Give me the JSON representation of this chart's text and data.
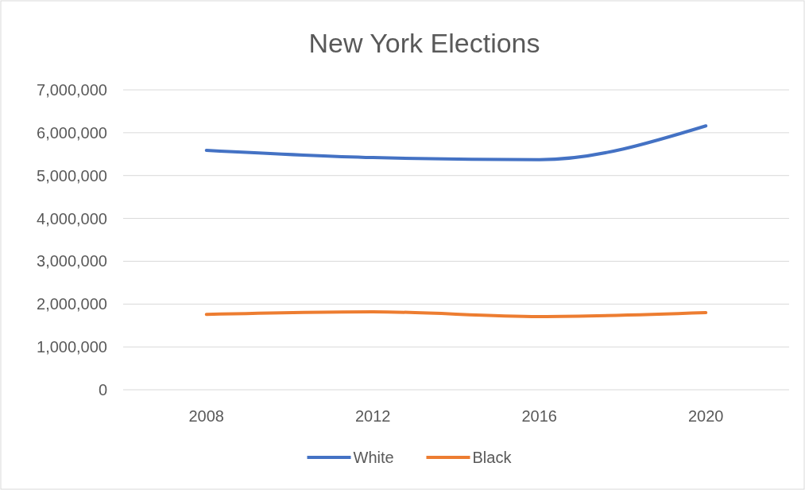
{
  "chart_data": {
    "type": "line",
    "title": "New York Elections",
    "categories": [
      "2008",
      "2012",
      "2016",
      "2020"
    ],
    "series": [
      {
        "name": "White",
        "color": "#4472c4",
        "values": [
          5590000,
          5420000,
          5370000,
          6160000
        ]
      },
      {
        "name": "Black",
        "color": "#ed7d31",
        "values": [
          1760000,
          1820000,
          1710000,
          1800000
        ]
      }
    ],
    "ylim": [
      0,
      7000000
    ],
    "yticks": [
      0,
      {
        "value": 1000000,
        "label": "1,000,000"
      },
      {
        "value": 2000000,
        "label": "2,000,000"
      },
      {
        "value": 3000000,
        "label": "3,000,000"
      },
      {
        "value": 4000000,
        "label": "4,000,000"
      },
      {
        "value": 5000000,
        "label": "5,000,000"
      },
      {
        "value": 6000000,
        "label": "6,000,000"
      },
      {
        "value": 7000000,
        "label": "7,000,000"
      }
    ],
    "grid": "y",
    "legend": "bottom",
    "marker": "none",
    "line_style": "solid"
  }
}
